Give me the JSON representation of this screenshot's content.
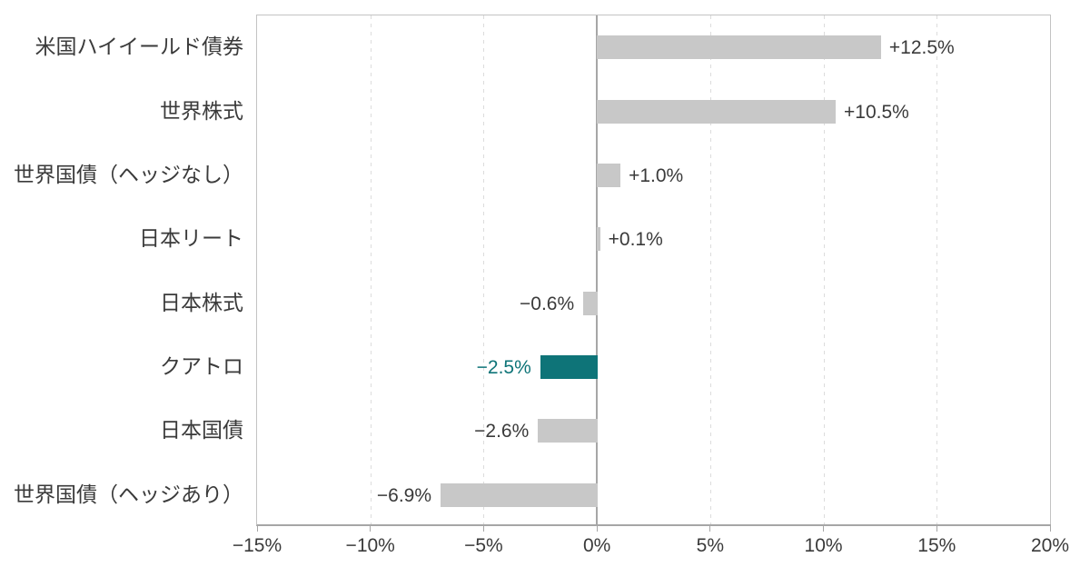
{
  "chart_data": {
    "type": "bar",
    "orientation": "horizontal",
    "title": "",
    "xlabel": "",
    "ylabel": "",
    "categories": [
      "米国ハイイールド債券",
      "世界株式",
      "世界国債（ヘッジなし）",
      "日本リート",
      "日本株式",
      "クアトロ",
      "日本国債",
      "世界国債（ヘッジあり）"
    ],
    "values": [
      12.5,
      10.5,
      1.0,
      0.1,
      -0.6,
      -2.5,
      -2.6,
      -6.9
    ],
    "value_labels": [
      "+12.5%",
      "+10.5%",
      "+1.0%",
      "+0.1%",
      "−0.6%",
      "−2.5%",
      "−2.6%",
      "−6.9%"
    ],
    "highlight_index": 5,
    "highlight_category": "クアトロ",
    "xlim": [
      -15,
      20
    ],
    "x_ticks": [
      -15,
      -10,
      -5,
      0,
      5,
      10,
      15,
      20
    ],
    "x_tick_labels": [
      "−15%",
      "−10%",
      "−5%",
      "0%",
      "5%",
      "10%",
      "15%",
      "20%"
    ],
    "grid": "vertical dashed gridlines at non-zero ticks, solid line at zero",
    "legend": "none",
    "colors": {
      "bar": "#c8c8c8",
      "highlight_bar": "#0e7478",
      "highlight_text": "#0e7478",
      "text": "#3a3a3a",
      "gridline": "#dcdcdc",
      "axis_line": "#a6a6a6",
      "plot_border": "#c3c3c3",
      "background": "#ffffff"
    }
  }
}
